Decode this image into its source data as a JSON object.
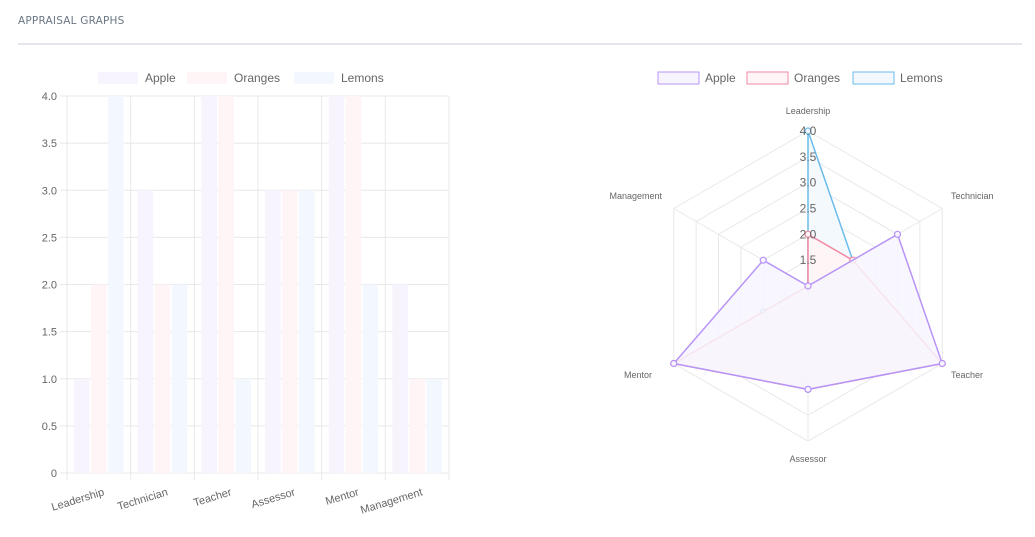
{
  "section": {
    "title": "APPRAISAL GRAPHS"
  },
  "colors": {
    "apple_border": "#b794f6",
    "apple_fill": "#f7f4fe",
    "oranges_border": "#f28aa3",
    "oranges_fill": "#fff4f6",
    "lemons_border": "#6cbbec",
    "lemons_fill": "#f2f8fe",
    "grid": "#e8e8e8",
    "text": "#666666"
  },
  "chart_data": [
    {
      "type": "bar",
      "title": "",
      "categories": [
        "Leadership",
        "Technician",
        "Teacher",
        "Assessor",
        "Mentor",
        "Management"
      ],
      "series": [
        {
          "name": "Apple",
          "values": [
            1,
            3,
            4,
            3,
            4,
            2
          ]
        },
        {
          "name": "Oranges",
          "values": [
            2,
            2,
            4,
            3,
            4,
            1
          ]
        },
        {
          "name": "Lemons",
          "values": [
            4,
            2,
            1,
            3,
            2,
            1
          ]
        }
      ],
      "xlabel": "",
      "ylabel": "",
      "ylim": [
        0,
        4
      ],
      "yticks": [
        "0",
        "0.5",
        "1.0",
        "1.5",
        "2.0",
        "2.5",
        "3.0",
        "3.5",
        "4.0"
      ],
      "grid": true,
      "legend_position": "top"
    },
    {
      "type": "radar",
      "title": "",
      "categories": [
        "Leadership",
        "Technician",
        "Teacher",
        "Assessor",
        "Mentor",
        "Management"
      ],
      "series": [
        {
          "name": "Apple",
          "values": [
            1,
            3,
            4,
            3,
            4,
            2
          ]
        },
        {
          "name": "Oranges",
          "values": [
            2,
            2,
            4,
            3,
            4,
            1
          ]
        },
        {
          "name": "Lemons",
          "values": [
            4,
            2,
            1,
            3,
            2,
            1
          ]
        }
      ],
      "rlim": [
        1,
        4
      ],
      "rticks": [
        "1.5",
        "2.0",
        "2.5",
        "3.0",
        "3.5",
        "4.0"
      ],
      "grid": true,
      "legend_position": "top"
    }
  ]
}
